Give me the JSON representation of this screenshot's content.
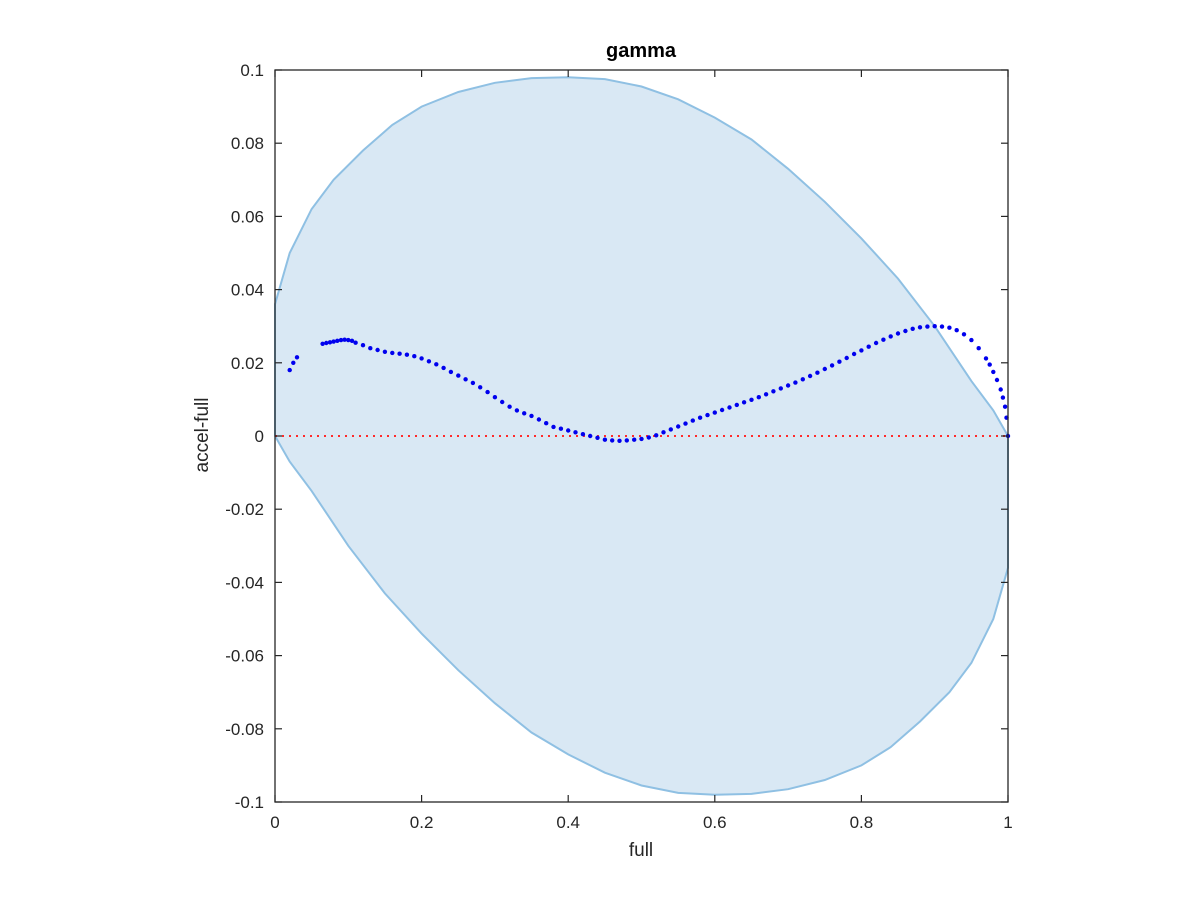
{
  "chart_data": {
    "type": "scatter",
    "title": "gamma",
    "xlabel": "full",
    "ylabel": "accel-full",
    "xlim": [
      0,
      1
    ],
    "ylim": [
      -0.1,
      0.1
    ],
    "xticks": [
      0,
      0.2,
      0.4,
      0.6,
      0.8,
      1
    ],
    "xtick_labels": [
      "0",
      "0.2",
      "0.4",
      "0.6",
      "0.8",
      "1"
    ],
    "yticks": [
      0.1,
      0.08,
      0.06,
      0.04,
      0.02,
      0,
      -0.02,
      -0.04,
      -0.06,
      -0.08,
      -0.1
    ],
    "ytick_labels": [
      "0.1",
      "0.08",
      "0.06",
      "0.04",
      "0.02",
      "0",
      "-0.02",
      "-0.04",
      "-0.06",
      "-0.08",
      "-0.1"
    ],
    "grid": false,
    "region": {
      "shape": "tilted ellipse",
      "fill_color": "#d9e8f4",
      "edge_color": "#8fc0e3",
      "boundary": [
        [
          0.0,
          0.0
        ],
        [
          0.0,
          0.036
        ],
        [
          0.02,
          0.05
        ],
        [
          0.05,
          0.062
        ],
        [
          0.08,
          0.07
        ],
        [
          0.12,
          0.078
        ],
        [
          0.16,
          0.085
        ],
        [
          0.2,
          0.09
        ],
        [
          0.25,
          0.094
        ],
        [
          0.3,
          0.0965
        ],
        [
          0.35,
          0.0978
        ],
        [
          0.4,
          0.098
        ],
        [
          0.45,
          0.0975
        ],
        [
          0.5,
          0.0955
        ],
        [
          0.55,
          0.092
        ],
        [
          0.6,
          0.087
        ],
        [
          0.65,
          0.081
        ],
        [
          0.7,
          0.073
        ],
        [
          0.75,
          0.064
        ],
        [
          0.8,
          0.054
        ],
        [
          0.85,
          0.043
        ],
        [
          0.9,
          0.03
        ],
        [
          0.95,
          0.015
        ],
        [
          0.98,
          0.007
        ],
        [
          1.0,
          0.0
        ],
        [
          1.0,
          -0.036
        ],
        [
          0.98,
          -0.05
        ],
        [
          0.95,
          -0.062
        ],
        [
          0.92,
          -0.07
        ],
        [
          0.88,
          -0.078
        ],
        [
          0.84,
          -0.085
        ],
        [
          0.8,
          -0.09
        ],
        [
          0.75,
          -0.094
        ],
        [
          0.7,
          -0.0965
        ],
        [
          0.65,
          -0.0978
        ],
        [
          0.6,
          -0.098
        ],
        [
          0.55,
          -0.0975
        ],
        [
          0.5,
          -0.0955
        ],
        [
          0.45,
          -0.092
        ],
        [
          0.4,
          -0.087
        ],
        [
          0.35,
          -0.081
        ],
        [
          0.3,
          -0.073
        ],
        [
          0.25,
          -0.064
        ],
        [
          0.2,
          -0.054
        ],
        [
          0.15,
          -0.043
        ],
        [
          0.1,
          -0.03
        ],
        [
          0.05,
          -0.015
        ],
        [
          0.02,
          -0.007
        ],
        [
          0.0,
          0.0
        ]
      ]
    },
    "reference_line": {
      "y": 0,
      "color": "#ff2a2a",
      "style": "dotted"
    },
    "series": [
      {
        "color": "#0000ee",
        "marker": "dot",
        "x": [
          0.02,
          0.025,
          0.03,
          0.065,
          0.07,
          0.075,
          0.08,
          0.085,
          0.09,
          0.095,
          0.1,
          0.105,
          0.11,
          0.12,
          0.13,
          0.14,
          0.15,
          0.16,
          0.17,
          0.18,
          0.19,
          0.2,
          0.21,
          0.22,
          0.23,
          0.24,
          0.25,
          0.26,
          0.27,
          0.28,
          0.29,
          0.3,
          0.31,
          0.32,
          0.33,
          0.34,
          0.35,
          0.36,
          0.37,
          0.38,
          0.39,
          0.4,
          0.41,
          0.42,
          0.43,
          0.44,
          0.45,
          0.46,
          0.47,
          0.48,
          0.49,
          0.5,
          0.51,
          0.52,
          0.53,
          0.54,
          0.55,
          0.56,
          0.57,
          0.58,
          0.59,
          0.6,
          0.61,
          0.62,
          0.63,
          0.64,
          0.65,
          0.66,
          0.67,
          0.68,
          0.69,
          0.7,
          0.71,
          0.72,
          0.73,
          0.74,
          0.75,
          0.76,
          0.77,
          0.78,
          0.79,
          0.8,
          0.81,
          0.82,
          0.83,
          0.84,
          0.85,
          0.86,
          0.87,
          0.88,
          0.89,
          0.9,
          0.91,
          0.92,
          0.93,
          0.94,
          0.95,
          0.96,
          0.97,
          0.975,
          0.98,
          0.985,
          0.99,
          0.993,
          0.996,
          0.998,
          1.0
        ],
        "y": [
          0.018,
          0.02,
          0.0215,
          0.0252,
          0.0254,
          0.0256,
          0.0258,
          0.026,
          0.0262,
          0.0263,
          0.0262,
          0.026,
          0.0255,
          0.0248,
          0.024,
          0.0235,
          0.023,
          0.0227,
          0.0225,
          0.0222,
          0.0218,
          0.0212,
          0.0204,
          0.0196,
          0.0186,
          0.0175,
          0.0165,
          0.0155,
          0.0145,
          0.0133,
          0.012,
          0.0106,
          0.0093,
          0.008,
          0.007,
          0.0062,
          0.0055,
          0.0045,
          0.0035,
          0.0025,
          0.002,
          0.0015,
          0.001,
          0.0005,
          0.0,
          -0.0005,
          -0.001,
          -0.0012,
          -0.0013,
          -0.0012,
          -0.001,
          -0.0008,
          -0.0004,
          0.0002,
          0.001,
          0.0018,
          0.0026,
          0.0034,
          0.0042,
          0.005,
          0.0057,
          0.0064,
          0.0071,
          0.0078,
          0.0085,
          0.0092,
          0.0099,
          0.0106,
          0.0114,
          0.0122,
          0.013,
          0.0138,
          0.0146,
          0.0155,
          0.0164,
          0.0173,
          0.0183,
          0.0193,
          0.0203,
          0.0213,
          0.0224,
          0.0234,
          0.0244,
          0.0254,
          0.0263,
          0.0272,
          0.028,
          0.0287,
          0.0293,
          0.0297,
          0.0299,
          0.03,
          0.0299,
          0.0296,
          0.0289,
          0.0278,
          0.0262,
          0.024,
          0.0212,
          0.0195,
          0.0175,
          0.0153,
          0.0127,
          0.0105,
          0.008,
          0.005,
          0.0
        ]
      }
    ]
  }
}
